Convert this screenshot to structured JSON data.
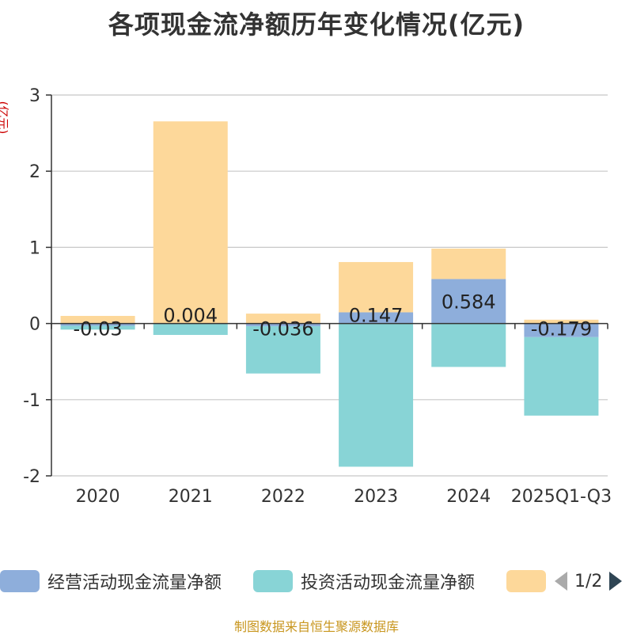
{
  "chart_data": {
    "type": "bar",
    "stacked": true,
    "title": "各项现金流净额历年变化情况(亿元)",
    "ylabel": "(亿元)",
    "xlabel": "",
    "ylim": [
      -2,
      3
    ],
    "yticks": [
      3,
      2,
      1,
      0,
      -1,
      -2
    ],
    "grid": true,
    "categories": [
      "2020",
      "2021",
      "2022",
      "2023",
      "2024",
      "2025Q1-Q3"
    ],
    "series": [
      {
        "name": "经营活动现金流量净额",
        "color": "#8eaedb",
        "values": [
          -0.03,
          0.004,
          -0.036,
          0.147,
          0.584,
          -0.179
        ],
        "labels": [
          "-0.03",
          "0.004",
          "-0.036",
          "0.147",
          "0.584",
          "-0.179"
        ]
      },
      {
        "name": "投资活动现金流量净额",
        "color": "#88d4d6",
        "values": [
          -0.05,
          -0.15,
          -0.62,
          -1.88,
          -0.57,
          -1.03
        ]
      },
      {
        "name": "",
        "color": "#fdd89a",
        "values": [
          0.1,
          2.65,
          0.13,
          0.66,
          0.4,
          0.05
        ]
      }
    ]
  },
  "legend": {
    "items": [
      {
        "label": "经营活动现金流量净额",
        "color": "#8eaedb"
      },
      {
        "label": "投资活动现金流量净额",
        "color": "#88d4d6"
      },
      {
        "label": "",
        "color": "#fdd89a"
      }
    ],
    "page": "1/2"
  },
  "footer": "制图数据来自恒生聚源数据库"
}
